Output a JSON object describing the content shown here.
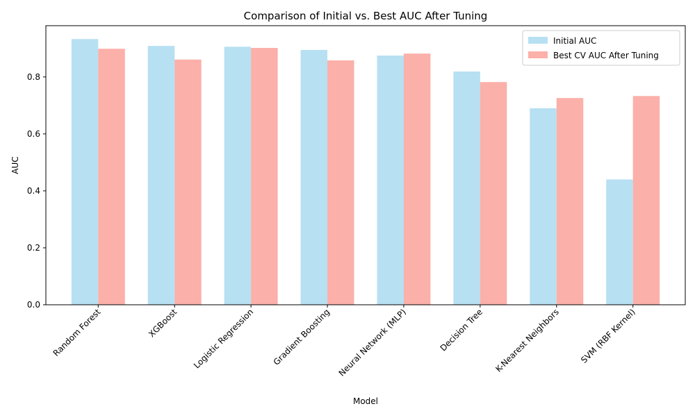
{
  "chart_data": {
    "type": "bar",
    "title": "Comparison of Initial vs. Best AUC After Tuning",
    "xlabel": "Model",
    "ylabel": "AUC",
    "ylim": [
      0,
      0.98
    ],
    "yticks": [
      0.0,
      0.2,
      0.4,
      0.6,
      0.8
    ],
    "ytick_labels": [
      "0.0",
      "0.2",
      "0.4",
      "0.6",
      "0.8"
    ],
    "categories": [
      "Random Forest",
      "XGBoost",
      "Logistic Regression",
      "Gradient Boosting",
      "Neural Network (MLP)",
      "Decision Tree",
      "K-Nearest Neighbors",
      "SVM (RBF Kernel)"
    ],
    "series": [
      {
        "name": "Initial AUC",
        "color": "#b7e0f2",
        "values": [
          0.933,
          0.909,
          0.906,
          0.895,
          0.875,
          0.819,
          0.69,
          0.44
        ]
      },
      {
        "name": "Best CV AUC After Tuning",
        "color": "#fbb0a9",
        "values": [
          0.899,
          0.861,
          0.902,
          0.858,
          0.882,
          0.782,
          0.726,
          0.733
        ]
      }
    ],
    "legend_position": "upper right",
    "grid": false
  }
}
